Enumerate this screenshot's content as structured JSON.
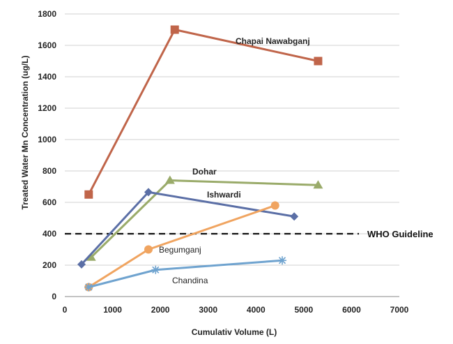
{
  "chart_data": {
    "type": "line",
    "title": "",
    "xlabel": "Cumulativ Volume (L)",
    "ylabel": "Treated Water Mn Concentration (ug/L)",
    "xlim": [
      0,
      7000
    ],
    "ylim": [
      0,
      1800
    ],
    "x_ticks": [
      "0",
      "1000",
      "2000",
      "3000",
      "4000",
      "5000",
      "6000",
      "7000"
    ],
    "y_ticks": [
      "0",
      "200",
      "400",
      "600",
      "800",
      "1000",
      "1200",
      "1400",
      "1600",
      "1800"
    ],
    "grid": "horizontal",
    "legend": "none",
    "series": [
      {
        "name": "Chapai Nawabganj",
        "color": "#c0654a",
        "marker": "square",
        "points": [
          {
            "x": 500,
            "y": 650
          },
          {
            "x": 2300,
            "y": 1700
          },
          {
            "x": 5300,
            "y": 1500
          }
        ]
      },
      {
        "name": "Dohar",
        "color": "#9aab6a",
        "marker": "triangle",
        "points": [
          {
            "x": 550,
            "y": 250
          },
          {
            "x": 2200,
            "y": 740
          },
          {
            "x": 5300,
            "y": 710
          }
        ]
      },
      {
        "name": "Ishwardi",
        "color": "#5b6fa6",
        "marker": "diamond",
        "points": [
          {
            "x": 350,
            "y": 205
          },
          {
            "x": 1750,
            "y": 665
          },
          {
            "x": 4800,
            "y": 510
          }
        ]
      },
      {
        "name": "Begumganj",
        "color": "#f0a460",
        "marker": "circle",
        "points": [
          {
            "x": 500,
            "y": 60
          },
          {
            "x": 1750,
            "y": 300
          },
          {
            "x": 4400,
            "y": 580
          }
        ]
      },
      {
        "name": "Chandina",
        "color": "#6fa3cf",
        "marker": "star",
        "points": [
          {
            "x": 500,
            "y": 60
          },
          {
            "x": 1900,
            "y": 170
          },
          {
            "x": 4550,
            "y": 230
          }
        ]
      }
    ],
    "reference_lines": [
      {
        "name": "WHO Guideline",
        "y": 400,
        "style": "dashed",
        "color": "#111111"
      }
    ]
  }
}
